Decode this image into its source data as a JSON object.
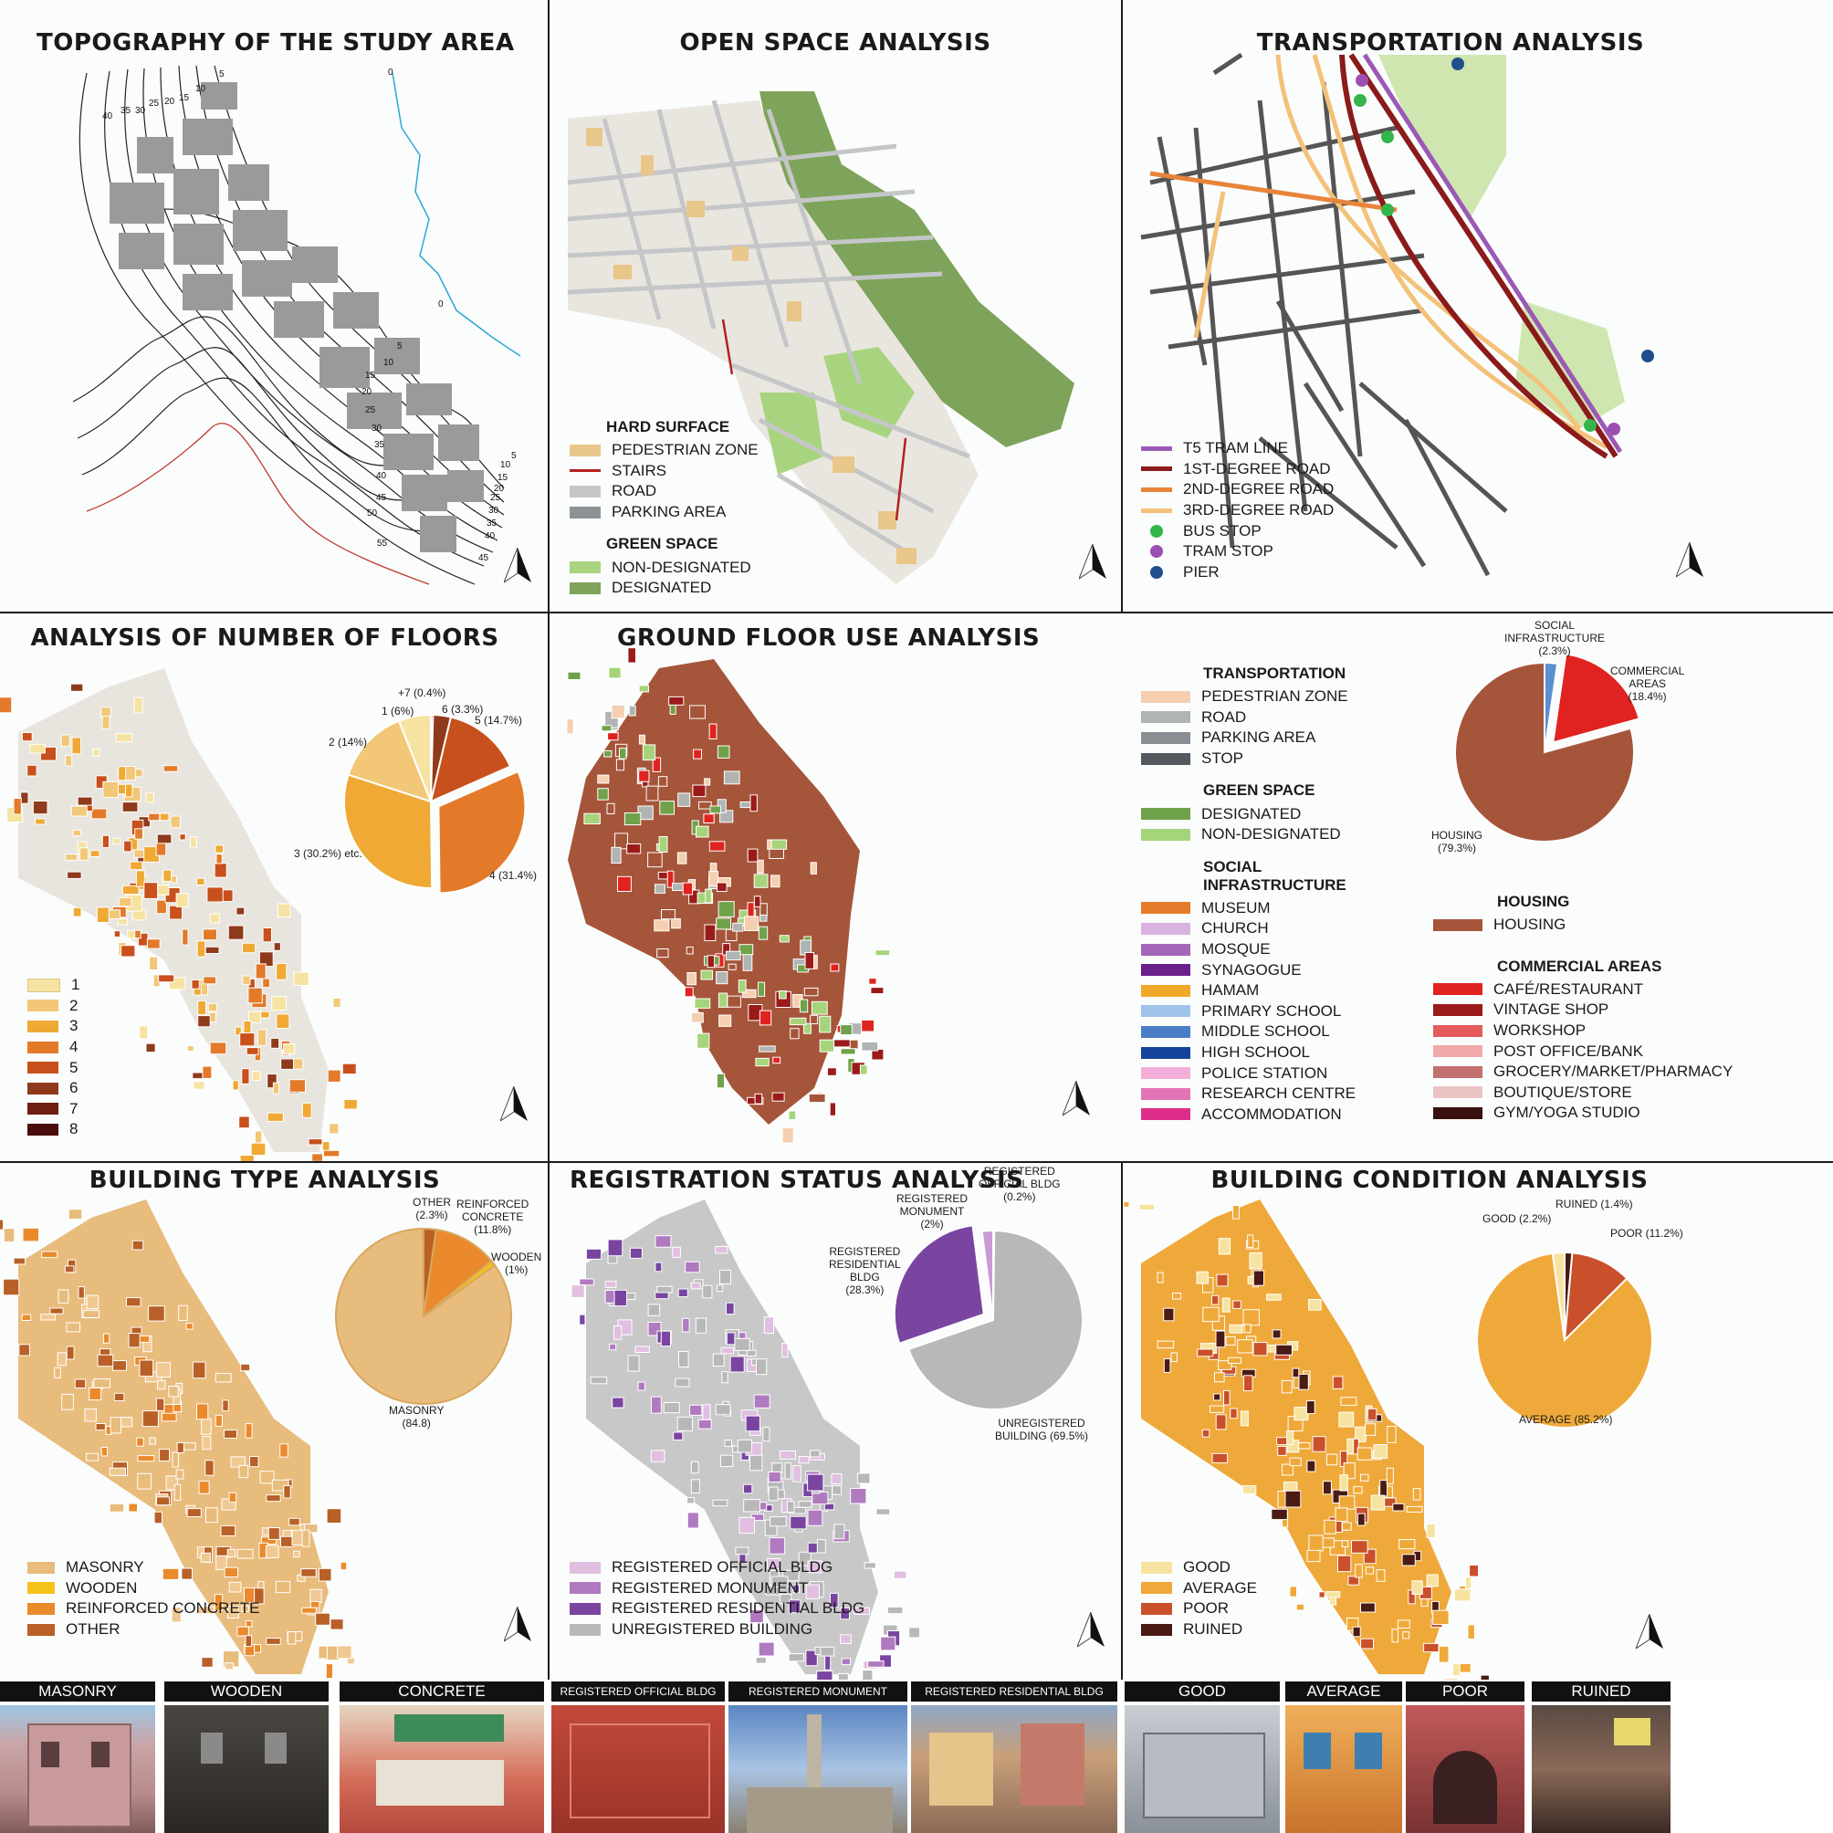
{
  "panels": {
    "topography": {
      "title": "TOPOGRAPHY OF THE STUDY AREA",
      "contour_labels_upper": [
        "40",
        "35",
        "30",
        "25",
        "20",
        "15",
        "10",
        "5"
      ],
      "contour_labels_lower": [
        "5",
        "10",
        "15",
        "20",
        "25",
        "30",
        "35",
        "40",
        "45",
        "50",
        "55"
      ],
      "contour_labels_right": [
        "5",
        "10",
        "15",
        "20",
        "25",
        "30",
        "35",
        "40",
        "45"
      ],
      "sea_level_labels": [
        "0",
        "0"
      ]
    },
    "open_space": {
      "title": "OPEN SPACE ANALYSIS",
      "legend": {
        "hard_surface": {
          "heading": "HARD SURFACE",
          "items": [
            {
              "label": "PEDESTRIAN ZONE",
              "color": "#e9c78a",
              "kind": "box"
            },
            {
              "label": "STAIRS",
              "color": "#b32020",
              "kind": "line"
            },
            {
              "label": "ROAD",
              "color": "#c4c6c8",
              "kind": "box"
            },
            {
              "label": "PARKING AREA",
              "color": "#8e9196",
              "kind": "box"
            }
          ]
        },
        "green_space": {
          "heading": "GREEN SPACE",
          "items": [
            {
              "label": "NON-DESIGNATED",
              "color": "#a9d47f",
              "kind": "box"
            },
            {
              "label": "DESIGNATED",
              "color": "#7ea35a",
              "kind": "box"
            }
          ]
        }
      }
    },
    "transportation": {
      "title": "TRANSPORTATION ANALYSIS",
      "legend": [
        {
          "label": "T5 TRAM LINE",
          "color": "#9b59b6",
          "kind": "line"
        },
        {
          "label": "1ST-DEGREE ROAD",
          "color": "#8b1a1a",
          "kind": "line"
        },
        {
          "label": "2ND-DEGREE ROAD",
          "color": "#e8843a",
          "kind": "line"
        },
        {
          "label": "3RD-DEGREE ROAD",
          "color": "#f3c27a",
          "kind": "line"
        },
        {
          "label": "BUS STOP",
          "color": "#33b54a",
          "kind": "dot"
        },
        {
          "label": "TRAM STOP",
          "color": "#9b4fb0",
          "kind": "dot"
        },
        {
          "label": "PIER",
          "color": "#1f4e8c",
          "kind": "dot"
        }
      ]
    },
    "floors": {
      "title": "ANALYSIS OF NUMBER OF FLOORS",
      "legend": [
        {
          "label": "1",
          "color": "#f7e3a1"
        },
        {
          "label": "2",
          "color": "#f2c777"
        },
        {
          "label": "3",
          "color": "#efa934"
        },
        {
          "label": "4",
          "color": "#e27a2a"
        },
        {
          "label": "5",
          "color": "#c8501c"
        },
        {
          "label": "6",
          "color": "#8f3a1c"
        },
        {
          "label": "7",
          "color": "#6e1f12"
        },
        {
          "label": "8",
          "color": "#4a0d0d"
        }
      ],
      "pie_labels": {
        "plus7": "+7 (0.4%)",
        "one": "1 (6%)",
        "six": "6 (3.3%)",
        "five": "5 (14.7%)",
        "two": "2 (14%)",
        "three": "3 (30.2%) etc.",
        "four": "4 (31.4%)"
      }
    },
    "ground_floor": {
      "title": "GROUND FLOOR USE ANALYSIS",
      "legend_left": [
        {
          "heading": "TRANSPORTATION",
          "items": [
            {
              "label": "PEDESTRIAN ZONE",
              "color": "#f5cfb0"
            },
            {
              "label": "ROAD",
              "color": "#b0b4b2"
            },
            {
              "label": "PARKING AREA",
              "color": "#8a8d92"
            },
            {
              "label": "STOP",
              "color": "#55585e"
            }
          ]
        },
        {
          "heading": "GREEN SPACE",
          "items": [
            {
              "label": "DESIGNATED",
              "color": "#6fa24a"
            },
            {
              "label": "NON-DESIGNATED",
              "color": "#a6d47a"
            }
          ]
        },
        {
          "heading": "SOCIAL INFRASTRUCTURE",
          "items": [
            {
              "label": "MUSEUM",
              "color": "#e57b2a"
            },
            {
              "label": "CHURCH",
              "color": "#d9b3e0"
            },
            {
              "label": "MOSQUE",
              "color": "#a366b8"
            },
            {
              "label": "SYNAGOGUE",
              "color": "#6b1f8a"
            },
            {
              "label": "HAMAM",
              "color": "#f0a828"
            },
            {
              "label": "PRIMARY SCHOOL",
              "color": "#9ec3ea"
            },
            {
              "label": "MIDDLE SCHOOL",
              "color": "#4a7fc6"
            },
            {
              "label": "HIGH SCHOOL",
              "color": "#16449b"
            },
            {
              "label": "POLICE STATION",
              "color": "#f2aed8"
            },
            {
              "label": "RESEARCH CENTRE",
              "color": "#e473b6"
            },
            {
              "label": "ACCOMMODATION",
              "color": "#de2e8a"
            }
          ]
        }
      ],
      "legend_right": [
        {
          "heading": "HOUSING",
          "items": [
            {
              "label": "HOUSING",
              "color": "#a5553a"
            }
          ]
        },
        {
          "heading": "COMMERCIAL AREAS",
          "items": [
            {
              "label": "CAFÉ/RESTAURANT",
              "color": "#e02320"
            },
            {
              "label": "VINTAGE SHOP",
              "color": "#9b1a1a"
            },
            {
              "label": "WORKSHOP",
              "color": "#e55a5a"
            },
            {
              "label": "POST OFFICE/BANK",
              "color": "#f0a8a8"
            },
            {
              "label": "GROCERY/MARKET/PHARMACY",
              "color": "#c27070"
            },
            {
              "label": "BOUTIQUE/STORE",
              "color": "#ecc3c3"
            },
            {
              "label": "GYM/YOGA STUDIO",
              "color": "#3a0f0f"
            }
          ]
        }
      ],
      "pie_labels": {
        "social": "SOCIAL\nINFRASTRUCTURE\n(2.3%)",
        "commercial": "COMMERCIAL\nAREAS\n(18.4%)",
        "housing": "HOUSING\n(79.3%)"
      }
    },
    "building_type": {
      "title": "BUILDING TYPE ANALYSIS",
      "legend": [
        {
          "label": "MASONRY",
          "color": "#e8bc7c"
        },
        {
          "label": "WOODEN",
          "color": "#f5c21a"
        },
        {
          "label": "REINFORCED CONCRETE",
          "color": "#ea8a2c"
        },
        {
          "label": "OTHER",
          "color": "#b86028"
        }
      ],
      "pie_labels": {
        "other": "OTHER\n(2.3%)",
        "rc": "REINFORCED\nCONCRETE\n(11.8%)",
        "wooden": "WOODEN\n(1%)",
        "masonry": "MASONRY\n(84.8)"
      }
    },
    "registration": {
      "title": "REGISTRATION STATUS ANALYSIS",
      "legend": [
        {
          "label": "REGISTERED OFFICIAL BLDG",
          "color": "#e0bfe0"
        },
        {
          "label": "REGISTERED MONUMENT",
          "color": "#b07ac0"
        },
        {
          "label": "REGISTERED RESIDENTIAL BLDG",
          "color": "#7a45a0"
        },
        {
          "label": "UNREGISTERED BUILDING",
          "color": "#b8b8b8"
        }
      ],
      "pie_labels": {
        "official": "REGISTERED\nOFFICIAL BLDG\n(0.2%)",
        "monument": "REGISTERED\nMONUMENT\n(2%)",
        "residential": "REGISTERED\nRESIDENTIAL\nBLDG\n(28.3%)",
        "unregistered": "UNREGISTERED\nBUILDING (69.5%)"
      }
    },
    "condition": {
      "title": "BUILDING CONDITION ANALYSIS",
      "legend": [
        {
          "label": "GOOD",
          "color": "#f7e3a1"
        },
        {
          "label": "AVERAGE",
          "color": "#efa93a"
        },
        {
          "label": "POOR",
          "color": "#c9502a"
        },
        {
          "label": "RUINED",
          "color": "#4a1a14"
        }
      ],
      "pie_labels": {
        "good": "GOOD (2.2%)",
        "ruined": "RUINED (1.4%)",
        "poor": "POOR (11.2%)",
        "average": "AVERAGE (85.2%)"
      }
    }
  },
  "photo_captions": {
    "masonry": "MASONRY",
    "wooden": "WOODEN",
    "concrete": "CONCRETE",
    "reg_official": "REGISTERED OFFICIAL BLDG",
    "reg_monument": "REGISTERED MONUMENT",
    "reg_residential": "REGISTERED RESIDENTIAL BLDG",
    "good": "GOOD",
    "average": "AVERAGE",
    "poor": "POOR",
    "ruined": "RUINED"
  },
  "pies": {
    "floors": {
      "values": [
        {
          "label": "+7",
          "pct": 0.4,
          "color": "#4a0d0d"
        },
        {
          "label": "6",
          "pct": 3.3,
          "color": "#8f3a1c"
        },
        {
          "label": "5",
          "pct": 14.7,
          "color": "#c8501c"
        },
        {
          "label": "4",
          "pct": 31.4,
          "color": "#e27a2a",
          "explode": true
        },
        {
          "label": "3",
          "pct": 30.2,
          "color": "#efa934"
        },
        {
          "label": "2",
          "pct": 14,
          "color": "#f2c777"
        },
        {
          "label": "1",
          "pct": 6,
          "color": "#f7e3a1"
        }
      ]
    },
    "ground": {
      "values": [
        {
          "label": "Social",
          "pct": 2.3,
          "color": "#5b8fd0"
        },
        {
          "label": "Commercial",
          "pct": 18.4,
          "color": "#e02320",
          "explode": true
        },
        {
          "label": "Housing",
          "pct": 79.3,
          "color": "#a5553a"
        }
      ]
    },
    "type": {
      "values": [
        {
          "label": "Other",
          "pct": 2.3,
          "color": "#b86028"
        },
        {
          "label": "Reinforced concrete",
          "pct": 11.8,
          "color": "#ea8a2c"
        },
        {
          "label": "Wooden",
          "pct": 1,
          "color": "#f5c21a"
        },
        {
          "label": "Masonry",
          "pct": 84.8,
          "color": "#e8bc7c"
        }
      ]
    },
    "registration": {
      "values": [
        {
          "label": "Official",
          "pct": 0.2,
          "color": "#e0bfe0"
        },
        {
          "label": "Unregistered",
          "pct": 69.5,
          "color": "#b8b8b8"
        },
        {
          "label": "Residential",
          "pct": 28.3,
          "color": "#7a45a0",
          "explode": true
        },
        {
          "label": "Monument",
          "pct": 2,
          "color": "#c99ad6"
        }
      ]
    },
    "condition": {
      "values": [
        {
          "label": "Ruined",
          "pct": 1.4,
          "color": "#4a1a14"
        },
        {
          "label": "Poor",
          "pct": 11.2,
          "color": "#c9502a"
        },
        {
          "label": "Average",
          "pct": 85.2,
          "color": "#efa93a"
        },
        {
          "label": "Good",
          "pct": 2.2,
          "color": "#f7e3a1"
        }
      ]
    }
  }
}
